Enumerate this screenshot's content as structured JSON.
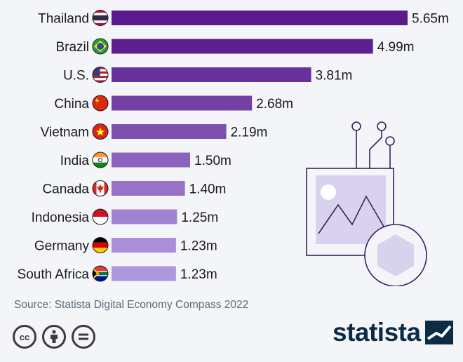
{
  "chart_data": {
    "type": "bar",
    "orientation": "horizontal",
    "categories": [
      "Thailand",
      "Brazil",
      "U.S.",
      "China",
      "Vietnam",
      "India",
      "Canada",
      "Indonesia",
      "Germany",
      "South Africa"
    ],
    "values": [
      5.65,
      4.99,
      3.81,
      2.68,
      2.19,
      1.5,
      1.4,
      1.25,
      1.23,
      1.23
    ],
    "value_labels": [
      "5.65m",
      "4.99m",
      "3.81m",
      "2.68m",
      "2.19m",
      "1.50m",
      "1.40m",
      "1.25m",
      "1.23m",
      "1.23m"
    ],
    "bar_colors": [
      "#5b1a8c",
      "#5e2090",
      "#67309a",
      "#7340a4",
      "#7e50ae",
      "#8c64bd",
      "#9772c6",
      "#a084d2",
      "#a88fd8",
      "#ae97dc"
    ],
    "flags": [
      "thailand-flag",
      "brazil-flag",
      "us-flag",
      "china-flag",
      "vietnam-flag",
      "india-flag",
      "canada-flag",
      "indonesia-flag",
      "germany-flag",
      "south-africa-flag"
    ],
    "xlim": [
      0,
      5.65
    ],
    "title": "",
    "xlabel": "",
    "ylabel": ""
  },
  "footer": {
    "source": "Source: Statista Digital Economy Compass 2022",
    "brand": "statista",
    "license_icons": [
      "cc-icon",
      "by-icon",
      "nd-icon"
    ]
  }
}
